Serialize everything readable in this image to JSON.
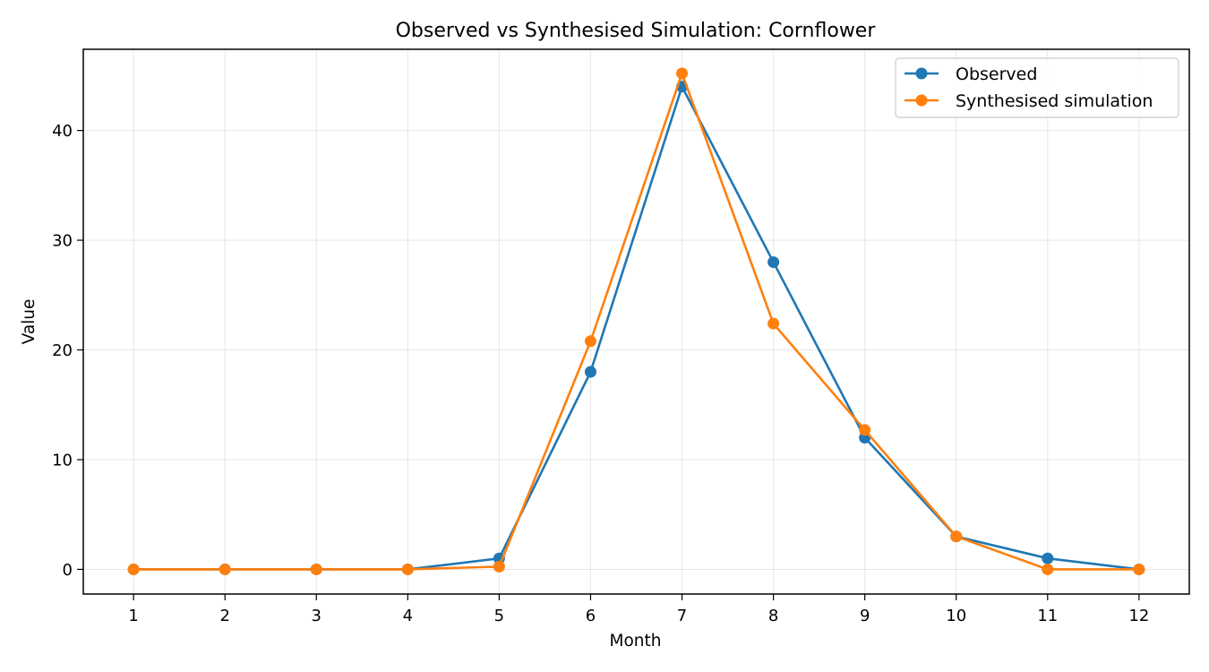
{
  "chart_data": {
    "type": "line",
    "title": "Observed vs Synthesised Simulation: Cornflower",
    "xlabel": "Month",
    "ylabel": "Value",
    "x": [
      1,
      2,
      3,
      4,
      5,
      6,
      7,
      8,
      9,
      10,
      11,
      12
    ],
    "xlim": [
      0.45,
      12.55
    ],
    "ylim": [
      -2.25,
      47.4
    ],
    "yticks": [
      0,
      10,
      20,
      30,
      40
    ],
    "grid": true,
    "legend_position": "top-right",
    "series": [
      {
        "name": "Observed",
        "color": "#1f77b4",
        "marker": "circle",
        "values": [
          0,
          0,
          0,
          0,
          1,
          18,
          44,
          28,
          12,
          3,
          1,
          0
        ]
      },
      {
        "name": "Synthesised simulation",
        "color": "#ff7f0e",
        "marker": "circle",
        "values": [
          0,
          0,
          0,
          0,
          0.25,
          20.8,
          45.2,
          22.4,
          12.7,
          3.0,
          0,
          0
        ]
      }
    ]
  }
}
